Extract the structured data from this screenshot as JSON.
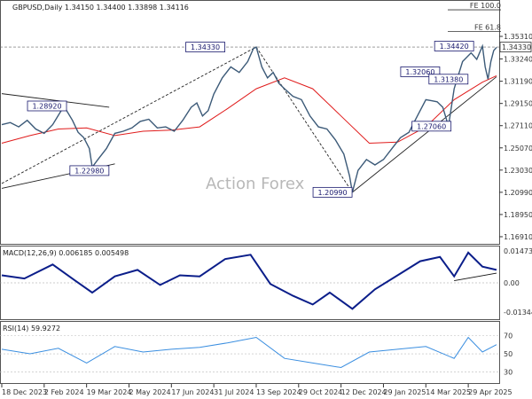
{
  "watermark": "Action Forex",
  "main": {
    "header": "GBPUSD,Daily  1.34150 1.34400 1.33898 1.34116",
    "ylim": [
      1.165,
      1.38
    ],
    "y_ticks": [
      "1.35310",
      "1.33240",
      "1.31190",
      "1.29150",
      "1.27110",
      "1.25070",
      "1.23030",
      "1.20990",
      "1.18950",
      "1.16910"
    ],
    "current_price": "1.34330",
    "fib_levels": [
      {
        "label": "FE 100.0",
        "value": 1.3775
      },
      {
        "label": "FE 61.8",
        "value": 1.3575
      }
    ],
    "price_labels": [
      {
        "text": "1.34330",
        "x": 72,
        "y": 1.3433
      },
      {
        "text": "1.28920",
        "x": 16,
        "y": 1.2892
      },
      {
        "text": "1.22980",
        "x": 31,
        "y": 1.2298
      },
      {
        "text": "1.20990",
        "x": 117,
        "y": 1.2099
      },
      {
        "text": "1.27060",
        "x": 152,
        "y": 1.2706
      },
      {
        "text": "1.32060",
        "x": 148,
        "y": 1.3206
      },
      {
        "text": "1.31380",
        "x": 158,
        "y": 1.3138
      },
      {
        "text": "1.34420",
        "x": 160,
        "y": 1.3442
      }
    ]
  },
  "macd": {
    "header": "MACD(12,26,9) 0.006185 0.005498",
    "ylim": [
      -0.016,
      0.016
    ],
    "y_ticks": [
      "0.014734",
      "0.00",
      "-0.013442"
    ]
  },
  "rsi": {
    "header": "RSI(14) 59.9272",
    "ylim": [
      20,
      82
    ],
    "y_ticks": [
      "70",
      "50",
      "30"
    ]
  },
  "x_ticks": [
    {
      "label": "18 Dec 2023",
      "x": 0
    },
    {
      "label": "2 Feb 2024",
      "x": 15
    },
    {
      "label": "19 Mar 2024",
      "x": 30
    },
    {
      "label": "2 May 2024",
      "x": 45
    },
    {
      "label": "17 Jun 2024",
      "x": 60
    },
    {
      "label": "31 Jul 2024",
      "x": 75
    },
    {
      "label": "13 Sep 2024",
      "x": 90
    },
    {
      "label": "29 Oct 2024",
      "x": 105
    },
    {
      "label": "12 Dec 2024",
      "x": 120
    },
    {
      "label": "29 Jan 2025",
      "x": 135
    },
    {
      "label": "14 Mar 2025",
      "x": 150
    },
    {
      "label": "29 Apr 2025",
      "x": 165
    }
  ],
  "chart_data": {
    "type": "line",
    "title": "GBPUSD,Daily",
    "x_range": [
      0,
      175
    ],
    "series": [
      {
        "name": "GBPUSD",
        "values": [
          [
            0,
            1.272
          ],
          [
            3,
            1.274
          ],
          [
            6,
            1.27
          ],
          [
            9,
            1.276
          ],
          [
            12,
            1.268
          ],
          [
            15,
            1.264
          ],
          [
            18,
            1.272
          ],
          [
            22,
            1.289
          ],
          [
            25,
            1.276
          ],
          [
            27,
            1.265
          ],
          [
            29,
            1.26
          ],
          [
            31,
            1.25
          ],
          [
            32,
            1.233
          ],
          [
            34,
            1.24
          ],
          [
            37,
            1.25
          ],
          [
            40,
            1.264
          ],
          [
            43,
            1.266
          ],
          [
            46,
            1.269
          ],
          [
            49,
            1.275
          ],
          [
            52,
            1.277
          ],
          [
            55,
            1.269
          ],
          [
            58,
            1.27
          ],
          [
            61,
            1.266
          ],
          [
            64,
            1.276
          ],
          [
            67,
            1.288
          ],
          [
            69,
            1.292
          ],
          [
            71,
            1.28
          ],
          [
            73,
            1.285
          ],
          [
            75,
            1.3
          ],
          [
            78,
            1.315
          ],
          [
            81,
            1.325
          ],
          [
            84,
            1.32
          ],
          [
            87,
            1.33
          ],
          [
            89,
            1.342
          ],
          [
            90,
            1.3433
          ],
          [
            92,
            1.325
          ],
          [
            94,
            1.315
          ],
          [
            96,
            1.32
          ],
          [
            98,
            1.31
          ],
          [
            100,
            1.305
          ],
          [
            103,
            1.298
          ],
          [
            106,
            1.295
          ],
          [
            109,
            1.28
          ],
          [
            112,
            1.27
          ],
          [
            115,
            1.268
          ],
          [
            118,
            1.258
          ],
          [
            121,
            1.245
          ],
          [
            123,
            1.225
          ],
          [
            124,
            1.2099
          ],
          [
            126,
            1.23
          ],
          [
            129,
            1.24
          ],
          [
            132,
            1.235
          ],
          [
            135,
            1.24
          ],
          [
            138,
            1.25
          ],
          [
            141,
            1.26
          ],
          [
            144,
            1.265
          ],
          [
            147,
            1.28
          ],
          [
            150,
            1.295
          ],
          [
            152,
            1.294
          ],
          [
            154,
            1.293
          ],
          [
            156,
            1.288
          ],
          [
            158,
            1.2706
          ],
          [
            160,
            1.305
          ],
          [
            163,
            1.33
          ],
          [
            166,
            1.338
          ],
          [
            168,
            1.332
          ],
          [
            170,
            1.3442
          ],
          [
            171,
            1.325
          ],
          [
            172,
            1.3138
          ],
          [
            173,
            1.33
          ],
          [
            174,
            1.34
          ],
          [
            175,
            1.343
          ]
        ]
      },
      {
        "name": "",
        "values": [
          [
            0,
            1.255
          ],
          [
            10,
            1.262
          ],
          [
            20,
            1.268
          ],
          [
            30,
            1.269
          ],
          [
            40,
            1.262
          ],
          [
            50,
            1.266
          ],
          [
            60,
            1.267
          ],
          [
            70,
            1.27
          ],
          [
            80,
            1.287
          ],
          [
            90,
            1.305
          ],
          [
            100,
            1.315
          ],
          [
            110,
            1.305
          ],
          [
            120,
            1.28
          ],
          [
            130,
            1.255
          ],
          [
            140,
            1.256
          ],
          [
            150,
            1.27
          ],
          [
            160,
            1.295
          ],
          [
            170,
            1.311
          ],
          [
            175,
            1.317
          ]
        ]
      }
    ],
    "macd": {
      "name": "MACD(12,26,9)",
      "values": [
        [
          0,
          0.0035
        ],
        [
          8,
          0.002
        ],
        [
          18,
          0.0085
        ],
        [
          26,
          0.001
        ],
        [
          32,
          -0.0045
        ],
        [
          40,
          0.003
        ],
        [
          48,
          0.006
        ],
        [
          56,
          -0.001
        ],
        [
          63,
          0.0035
        ],
        [
          70,
          0.003
        ],
        [
          79,
          0.011
        ],
        [
          88,
          0.013
        ],
        [
          95,
          -0.0005
        ],
        [
          103,
          -0.006
        ],
        [
          110,
          -0.01
        ],
        [
          116,
          -0.0045
        ],
        [
          124,
          -0.012
        ],
        [
          132,
          -0.003
        ],
        [
          140,
          0.0035
        ],
        [
          148,
          0.01
        ],
        [
          155,
          0.012
        ],
        [
          160,
          0.003
        ],
        [
          165,
          0.014
        ],
        [
          170,
          0.0075
        ],
        [
          175,
          0.006
        ]
      ]
    },
    "rsi": {
      "name": "RSI(14)",
      "values": [
        [
          0,
          55
        ],
        [
          10,
          50
        ],
        [
          20,
          56
        ],
        [
          30,
          40
        ],
        [
          40,
          58
        ],
        [
          50,
          52
        ],
        [
          60,
          55
        ],
        [
          70,
          57
        ],
        [
          80,
          62
        ],
        [
          90,
          68
        ],
        [
          100,
          45
        ],
        [
          110,
          40
        ],
        [
          120,
          35
        ],
        [
          130,
          52
        ],
        [
          140,
          55
        ],
        [
          150,
          58
        ],
        [
          160,
          45
        ],
        [
          165,
          68
        ],
        [
          170,
          52
        ],
        [
          175,
          60
        ]
      ]
    },
    "ylim": [
      1.165,
      1.38
    ]
  }
}
